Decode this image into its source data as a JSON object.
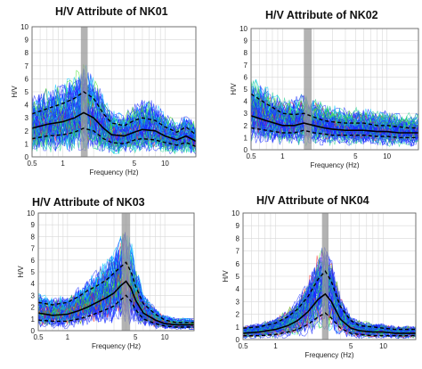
{
  "figure": {
    "panels": [
      {
        "id": "nk01",
        "title": "H/V Attribute of NK01"
      },
      {
        "id": "nk02",
        "title": "H/V Attribute of NK02"
      },
      {
        "id": "nk03",
        "title": "H/V Attribute of NK03"
      },
      {
        "id": "nk04",
        "title": "H/V Attribute of NK04"
      }
    ]
  },
  "chart_data": [
    {
      "type": "line",
      "title": "H/V Attribute of NK01",
      "xlabel": "Frequency (Hz)",
      "ylabel": "H/V",
      "xscale": "log",
      "xlim": [
        0.5,
        20
      ],
      "ylim": [
        0,
        10
      ],
      "xticks": [
        "0.5",
        "1",
        "5",
        "10"
      ],
      "yticks": [
        "0",
        "1",
        "2",
        "3",
        "4",
        "5",
        "6",
        "7",
        "8",
        "9",
        "10"
      ],
      "peak_band_hz": [
        1.5,
        1.75
      ],
      "mean_curve": {
        "x": [
          0.5,
          0.7,
          1.0,
          1.3,
          1.6,
          2.0,
          2.5,
          3.0,
          4.0,
          5.0,
          6.0,
          8.0,
          10.0,
          13.0,
          16.0,
          20.0
        ],
        "y": [
          2.2,
          2.5,
          2.7,
          3.0,
          3.4,
          3.0,
          2.2,
          1.7,
          1.6,
          1.9,
          2.1,
          2.0,
          1.6,
          1.3,
          1.6,
          1.2
        ]
      },
      "std_upper": {
        "x": [
          0.5,
          0.7,
          1.0,
          1.3,
          1.6,
          2.0,
          2.5,
          3.0,
          4.0,
          5.0,
          6.0,
          8.0,
          10.0,
          13.0,
          16.0,
          20.0
        ],
        "y": [
          3.3,
          3.7,
          4.1,
          4.5,
          5.0,
          4.5,
          3.3,
          2.6,
          2.4,
          2.8,
          3.0,
          2.8,
          2.3,
          1.9,
          2.3,
          1.7
        ]
      },
      "std_lower": {
        "x": [
          0.5,
          0.7,
          1.0,
          1.3,
          1.6,
          2.0,
          2.5,
          3.0,
          4.0,
          5.0,
          6.0,
          8.0,
          10.0,
          13.0,
          16.0,
          20.0
        ],
        "y": [
          1.4,
          1.6,
          1.7,
          1.9,
          2.2,
          2.0,
          1.4,
          1.1,
          1.0,
          1.3,
          1.4,
          1.3,
          1.1,
          0.9,
          1.1,
          0.8
        ]
      },
      "grid": true
    },
    {
      "type": "line",
      "title": "H/V Attribute of NK02",
      "xlabel": "Frequency (Hz)",
      "ylabel": "H/V",
      "xscale": "log",
      "xlim": [
        0.5,
        20
      ],
      "ylim": [
        0,
        10
      ],
      "xticks": [
        "0.5",
        "1",
        "5",
        "10"
      ],
      "yticks": [
        "0",
        "1",
        "2",
        "3",
        "4",
        "5",
        "6",
        "7",
        "8",
        "9",
        "10"
      ],
      "peak_band_hz": [
        1.6,
        1.9
      ],
      "mean_curve": {
        "x": [
          0.5,
          0.7,
          1.0,
          1.3,
          1.6,
          2.0,
          2.5,
          3.0,
          4.0,
          5.0,
          6.0,
          8.0,
          10.0,
          13.0,
          16.0,
          20.0
        ],
        "y": [
          2.8,
          2.4,
          2.0,
          2.0,
          2.2,
          2.0,
          1.8,
          1.7,
          1.6,
          1.6,
          1.6,
          1.5,
          1.5,
          1.4,
          1.4,
          1.4
        ]
      },
      "std_upper": {
        "x": [
          0.5,
          0.7,
          1.0,
          1.3,
          1.6,
          2.0,
          2.5,
          3.0,
          4.0,
          5.0,
          6.0,
          8.0,
          10.0,
          13.0,
          16.0,
          20.0
        ],
        "y": [
          4.6,
          3.8,
          3.0,
          2.9,
          3.0,
          2.7,
          2.4,
          2.3,
          2.2,
          2.2,
          2.2,
          2.0,
          2.0,
          1.9,
          1.8,
          1.8
        ]
      },
      "std_lower": {
        "x": [
          0.5,
          0.7,
          1.0,
          1.3,
          1.6,
          2.0,
          2.5,
          3.0,
          4.0,
          5.0,
          6.0,
          8.0,
          10.0,
          13.0,
          16.0,
          20.0
        ],
        "y": [
          1.8,
          1.6,
          1.4,
          1.4,
          1.6,
          1.4,
          1.3,
          1.2,
          1.2,
          1.2,
          1.2,
          1.1,
          1.1,
          1.0,
          1.0,
          1.0
        ]
      },
      "grid": true
    },
    {
      "type": "line",
      "title": "H/V Attribute of NK03",
      "xlabel": "Frequency (Hz)",
      "ylabel": "H/V",
      "xscale": "log",
      "xlim": [
        0.5,
        20
      ],
      "ylim": [
        0,
        10
      ],
      "xticks": [
        "0.5",
        "1",
        "5",
        "10"
      ],
      "yticks": [
        "0",
        "1",
        "2",
        "3",
        "4",
        "5",
        "6",
        "7",
        "8",
        "9",
        "10"
      ],
      "peak_band_hz": [
        3.6,
        4.4
      ],
      "mean_curve": {
        "x": [
          0.5,
          0.7,
          1.0,
          1.3,
          1.6,
          2.0,
          2.5,
          3.0,
          3.5,
          4.0,
          4.5,
          5.0,
          6.0,
          8.0,
          10.0,
          13.0,
          16.0,
          20.0
        ],
        "y": [
          1.5,
          1.3,
          1.4,
          1.7,
          2.0,
          2.4,
          2.8,
          3.2,
          3.8,
          4.2,
          3.6,
          2.6,
          1.5,
          0.9,
          0.6,
          0.5,
          0.5,
          0.5
        ]
      },
      "std_upper": {
        "x": [
          0.5,
          0.7,
          1.0,
          1.3,
          1.6,
          2.0,
          2.5,
          3.0,
          3.5,
          4.0,
          4.5,
          5.0,
          6.0,
          8.0,
          10.0,
          13.0,
          16.0,
          20.0
        ],
        "y": [
          2.4,
          2.2,
          2.4,
          2.9,
          3.4,
          3.8,
          4.3,
          4.9,
          5.4,
          5.8,
          5.0,
          3.8,
          2.3,
          1.4,
          0.9,
          0.7,
          0.7,
          0.7
        ]
      },
      "std_lower": {
        "x": [
          0.5,
          0.7,
          1.0,
          1.3,
          1.6,
          2.0,
          2.5,
          3.0,
          3.5,
          4.0,
          4.5,
          5.0,
          6.0,
          8.0,
          10.0,
          13.0,
          16.0,
          20.0
        ],
        "y": [
          0.9,
          0.8,
          0.8,
          1.0,
          1.2,
          1.5,
          1.8,
          2.1,
          2.6,
          3.0,
          2.5,
          1.8,
          1.0,
          0.6,
          0.4,
          0.3,
          0.3,
          0.3
        ]
      },
      "grid": true
    },
    {
      "type": "line",
      "title": "H/V Attribute of NK04",
      "xlabel": "Frequency (Hz)",
      "ylabel": "H/V",
      "xscale": "log",
      "xlim": [
        0.5,
        20
      ],
      "ylim": [
        0,
        10
      ],
      "xticks": [
        "0.5",
        "1",
        "5",
        "10"
      ],
      "yticks": [
        "0",
        "1",
        "2",
        "3",
        "4",
        "5",
        "6",
        "7",
        "8",
        "9",
        "10"
      ],
      "peak_band_hz": [
        2.7,
        3.1
      ],
      "mean_curve": {
        "x": [
          0.5,
          0.7,
          1.0,
          1.3,
          1.6,
          2.0,
          2.5,
          2.9,
          3.3,
          4.0,
          5.0,
          6.0,
          8.0,
          10.0,
          13.0,
          16.0,
          20.0
        ],
        "y": [
          0.5,
          0.6,
          0.8,
          1.1,
          1.5,
          2.2,
          3.2,
          3.6,
          3.0,
          1.6,
          0.9,
          0.7,
          0.6,
          0.6,
          0.5,
          0.5,
          0.5
        ]
      },
      "std_upper": {
        "x": [
          0.5,
          0.7,
          1.0,
          1.3,
          1.6,
          2.0,
          2.5,
          2.9,
          3.3,
          4.0,
          5.0,
          6.0,
          8.0,
          10.0,
          13.0,
          16.0,
          20.0
        ],
        "y": [
          0.9,
          1.0,
          1.3,
          1.8,
          2.4,
          3.4,
          4.8,
          5.4,
          4.6,
          2.6,
          1.5,
          1.1,
          1.0,
          0.9,
          0.8,
          0.8,
          0.8
        ]
      },
      "std_lower": {
        "x": [
          0.5,
          0.7,
          1.0,
          1.3,
          1.6,
          2.0,
          2.5,
          2.9,
          3.3,
          4.0,
          5.0,
          6.0,
          8.0,
          10.0,
          13.0,
          16.0,
          20.0
        ],
        "y": [
          0.3,
          0.3,
          0.4,
          0.6,
          0.8,
          1.2,
          1.8,
          2.1,
          1.7,
          0.9,
          0.5,
          0.4,
          0.3,
          0.3,
          0.3,
          0.3,
          0.3
        ]
      },
      "grid": true
    }
  ],
  "colors": {
    "window_curves": "#1a2cff",
    "window_curves_alt": [
      "#00c8ff",
      "#20d090",
      "#40e020",
      "#ff3030"
    ],
    "mean": "#000000",
    "peak_band": "#9a9a9a",
    "grid": "#d8d8d8"
  }
}
